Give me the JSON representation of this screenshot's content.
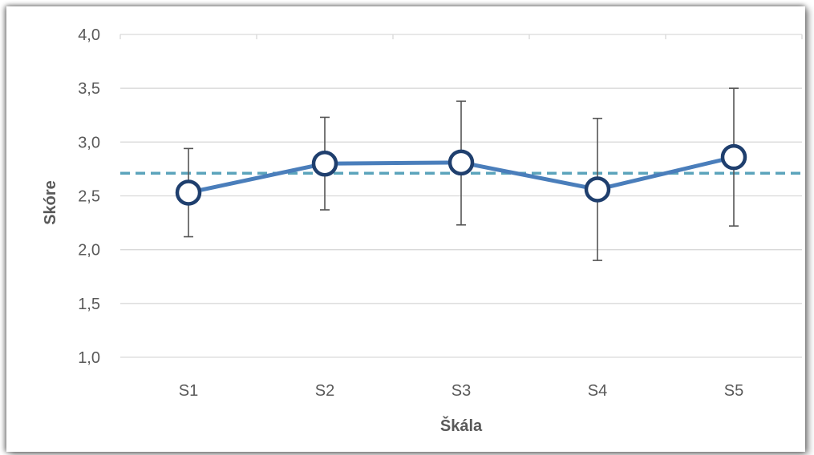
{
  "chart_data": {
    "type": "line",
    "title": "",
    "xlabel": "Škála",
    "ylabel": "Skóre",
    "categories": [
      "S1",
      "S2",
      "S3",
      "S4",
      "S5"
    ],
    "ylim": [
      1.0,
      4.0
    ],
    "yticks": [
      1.0,
      1.5,
      2.0,
      2.5,
      3.0,
      3.5,
      4.0
    ],
    "ytick_labels": [
      "1,0",
      "1,5",
      "2,0",
      "2,5",
      "3,0",
      "3,5",
      "4,0"
    ],
    "grid": "horizontal",
    "series": [
      {
        "values": [
          2.53,
          2.8,
          2.81,
          2.56,
          2.86
        ],
        "error_low": [
          2.12,
          2.37,
          2.23,
          1.9,
          2.22
        ],
        "error_high": [
          2.94,
          3.23,
          3.38,
          3.22,
          3.5
        ],
        "color": "#4a7ebb",
        "marker_edge_color": "#1f3f6e"
      }
    ],
    "reference_line": {
      "value": 2.71,
      "style": "dashed",
      "color": "#5ba3bb"
    }
  }
}
